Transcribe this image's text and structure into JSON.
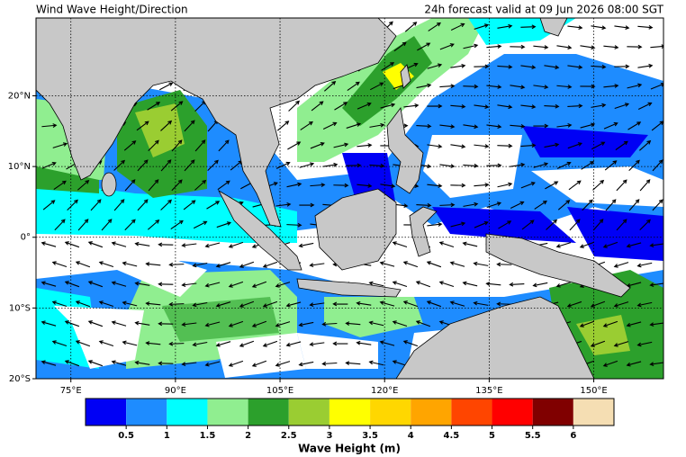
{
  "header": {
    "title": "Wind Wave Height/Direction",
    "subtitle": "24h forecast valid at 09 Jun 2026 08:00 SGT"
  },
  "map": {
    "xlim": [
      70,
      160
    ],
    "ylim": [
      -20,
      31
    ],
    "xticks": [
      {
        "value": 75,
        "label": "75°E"
      },
      {
        "value": 90,
        "label": "90°E"
      },
      {
        "value": 105,
        "label": "105°E"
      },
      {
        "value": 120,
        "label": "120°E"
      },
      {
        "value": 135,
        "label": "135°E"
      },
      {
        "value": 150,
        "label": "150°E"
      }
    ],
    "yticks": [
      {
        "value": -20,
        "label": "20°S"
      },
      {
        "value": -10,
        "label": "10°S"
      },
      {
        "value": 0,
        "label": "0°"
      },
      {
        "value": 10,
        "label": "10°N"
      },
      {
        "value": 20,
        "label": "20°N"
      }
    ],
    "grid": true
  },
  "colorbar": {
    "label": "Wave Height (m)",
    "colors": [
      "#0000f5",
      "#1e8cff",
      "#00ffff",
      "#90ee90",
      "#2ca02c",
      "#9acd32",
      "#ffff00",
      "#ffd700",
      "#ffa500",
      "#ff4500",
      "#ff0000",
      "#800000",
      "#f5deb3"
    ],
    "ticks": [
      0.5,
      1,
      1.5,
      2,
      2.5,
      3,
      3.5,
      4,
      4.5,
      5,
      5.5,
      6
    ]
  }
}
